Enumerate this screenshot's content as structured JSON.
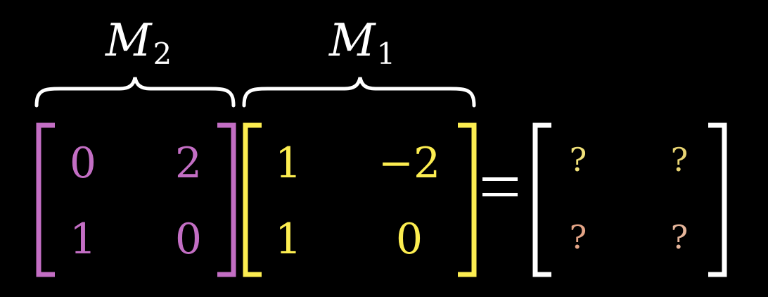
{
  "labels": {
    "m2": {
      "symbol": "M",
      "subscript": "2"
    },
    "m1": {
      "symbol": "M",
      "subscript": "1"
    }
  },
  "matrices": {
    "m2": {
      "color": "#c36ec4",
      "entries": [
        [
          "0",
          "2"
        ],
        [
          "1",
          "0"
        ]
      ]
    },
    "m1": {
      "color": "#fced50",
      "entries": [
        [
          "1",
          "−2"
        ],
        [
          "1",
          "0"
        ]
      ]
    },
    "result": {
      "color": "#ffffff",
      "entries": [
        [
          "?",
          "?"
        ],
        [
          "?",
          "?"
        ]
      ],
      "entry_colors": [
        [
          "#f2e27a",
          "#e8d473"
        ],
        [
          "#e3a486",
          "#e6b59a"
        ]
      ]
    }
  },
  "equals_sign": "="
}
